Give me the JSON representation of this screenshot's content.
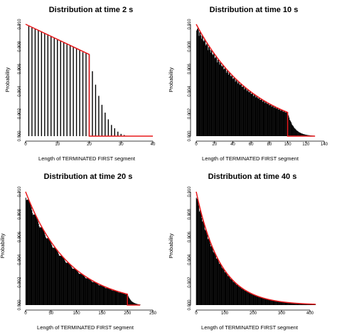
{
  "chart_data": [
    {
      "type": "bar",
      "title": "Distribution at time 2 s",
      "xlabel": "Length of TERMINATED FIRST segment",
      "ylabel": "Probability",
      "xlim": [
        0,
        40
      ],
      "ylim": [
        0,
        0.01
      ],
      "xticks": [
        "0",
        "10",
        "20",
        "30",
        "40"
      ],
      "yticks": [
        "0.000",
        "0.002",
        "0.004",
        "0.006",
        "0.008",
        "0.010"
      ],
      "x": [
        1,
        2,
        3,
        4,
        5,
        6,
        7,
        8,
        9,
        10,
        11,
        12,
        13,
        14,
        15,
        16,
        17,
        18,
        19,
        20,
        21,
        22,
        23,
        24,
        25,
        26,
        27,
        28,
        29,
        30,
        31
      ],
      "values": [
        0.0099,
        0.0097,
        0.0096,
        0.0095,
        0.0093,
        0.0092,
        0.0091,
        0.0089,
        0.0088,
        0.0086,
        0.0085,
        0.0084,
        0.0082,
        0.0081,
        0.008,
        0.0078,
        0.0077,
        0.0075,
        0.0074,
        0.0073,
        0.0058,
        0.0046,
        0.0036,
        0.0028,
        0.0021,
        0.0015,
        0.001,
        0.0007,
        0.0004,
        0.0002,
        0.0001
      ],
      "series_color": "#000000",
      "curve_color": "#e8191c",
      "curve": {
        "x": [
          0,
          20,
          20,
          40
        ],
        "y": [
          0.01,
          0.0073,
          0.0,
          0.0
        ]
      }
    },
    {
      "type": "bar",
      "title": "Distribution at time 10 s",
      "xlabel": "Length of TERMINATED FIRST segment",
      "ylabel": "Probability",
      "xlim": [
        0,
        140
      ],
      "ylim": [
        0,
        0.01
      ],
      "xticks": [
        "0",
        "20",
        "40",
        "60",
        "80",
        "100",
        "120",
        "140"
      ],
      "yticks": [
        "0.000",
        "0.002",
        "0.004",
        "0.006",
        "0.008",
        "0.010"
      ],
      "model": {
        "kind": "exp",
        "x_end": 130,
        "decay": 0.0155,
        "y0": 0.01,
        "cut": 100,
        "tail_decay": 0.14
      },
      "series_color": "#000000",
      "curve_color": "#e8191c",
      "curve": {
        "x": [
          0,
          20,
          40,
          60,
          80,
          100,
          100,
          140
        ],
        "y": [
          0.01,
          0.0074,
          0.0054,
          0.004,
          0.0029,
          0.0021,
          0.0,
          0.0
        ]
      }
    },
    {
      "type": "bar",
      "title": "Distribution at time 20 s",
      "xlabel": "Length of TERMINATED FIRST segment",
      "ylabel": "Probability",
      "xlim": [
        0,
        250
      ],
      "ylim": [
        0,
        0.01
      ],
      "xticks": [
        "0",
        "50",
        "100",
        "150",
        "200",
        "250"
      ],
      "yticks": [
        "0.000",
        "0.002",
        "0.004",
        "0.006",
        "0.008",
        "0.010"
      ],
      "model": {
        "kind": "exp",
        "x_end": 225,
        "decay": 0.0117,
        "y0": 0.01,
        "cut": 200,
        "tail_decay": 0.12
      },
      "series_color": "#000000",
      "curve_color": "#e8191c",
      "curve": {
        "x": [
          0,
          50,
          100,
          150,
          200,
          200,
          225
        ],
        "y": [
          0.01,
          0.0054,
          0.003,
          0.0017,
          0.001,
          0.0,
          0.0
        ]
      }
    },
    {
      "type": "bar",
      "title": "Distribution at time 40 s",
      "xlabel": "Length of TERMINATED FIRST segment",
      "ylabel": "Probability",
      "xlim": [
        0,
        450
      ],
      "ylim": [
        0,
        0.01
      ],
      "xticks": [
        "0",
        "100",
        "200",
        "300",
        "400"
      ],
      "yticks": [
        "0.000",
        "0.002",
        "0.004",
        "0.006",
        "0.008",
        "0.010"
      ],
      "model": {
        "kind": "exp",
        "x_end": 420,
        "decay": 0.0118,
        "y0": 0.01,
        "cut": 420,
        "tail_decay": 0.0
      },
      "series_color": "#000000",
      "curve_color": "#e8191c",
      "curve": {
        "x": [
          0,
          50,
          100,
          150,
          200,
          300,
          400
        ],
        "y": [
          0.01,
          0.0055,
          0.0031,
          0.0017,
          0.0009,
          0.0003,
          0.0001
        ]
      }
    }
  ]
}
